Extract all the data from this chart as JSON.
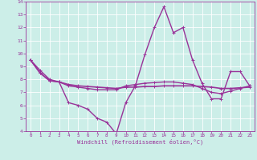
{
  "xlabel": "Windchill (Refroidissement éolien,°C)",
  "background_color": "#cceee8",
  "plot_bg_color": "#cceee8",
  "line_color": "#993399",
  "grid_color": "#aaaaaa",
  "hours": [
    0,
    1,
    2,
    3,
    4,
    5,
    6,
    7,
    8,
    9,
    10,
    11,
    12,
    13,
    14,
    15,
    16,
    17,
    18,
    19,
    20,
    21,
    22,
    23
  ],
  "series1": [
    9.5,
    8.7,
    8.0,
    7.8,
    6.2,
    6.0,
    5.7,
    5.0,
    4.7,
    3.8,
    6.2,
    7.5,
    9.9,
    12.0,
    13.6,
    11.6,
    12.0,
    9.5,
    7.7,
    6.5,
    6.5,
    8.6,
    8.6,
    7.5
  ],
  "series2": [
    9.5,
    8.5,
    7.9,
    7.8,
    7.5,
    7.4,
    7.3,
    7.2,
    7.2,
    7.2,
    7.5,
    7.6,
    7.7,
    7.75,
    7.8,
    7.8,
    7.7,
    7.6,
    7.3,
    7.0,
    6.9,
    7.1,
    7.3,
    7.5
  ],
  "series3": [
    9.5,
    8.5,
    7.9,
    7.8,
    7.6,
    7.5,
    7.45,
    7.4,
    7.35,
    7.3,
    7.4,
    7.4,
    7.45,
    7.45,
    7.5,
    7.5,
    7.5,
    7.5,
    7.45,
    7.4,
    7.3,
    7.3,
    7.35,
    7.4
  ],
  "ylim": [
    4,
    14
  ],
  "xlim": [
    -0.5,
    23.5
  ],
  "yticks": [
    4,
    5,
    6,
    7,
    8,
    9,
    10,
    11,
    12,
    13,
    14
  ],
  "xticks": [
    0,
    1,
    2,
    3,
    4,
    5,
    6,
    7,
    8,
    9,
    10,
    11,
    12,
    13,
    14,
    15,
    16,
    17,
    18,
    19,
    20,
    21,
    22,
    23
  ],
  "lw1": 1.0,
  "lw2": 1.0,
  "lw3": 1.2,
  "marker_size": 2.5
}
